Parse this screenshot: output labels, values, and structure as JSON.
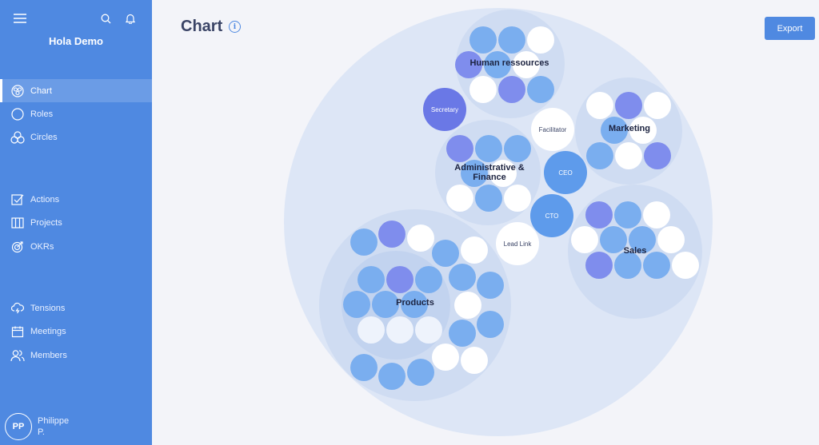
{
  "app": {
    "org_name": "Hola Demo",
    "menu_icon": "hamburger-icon",
    "search_icon": "search-icon",
    "notification_icon": "bell-icon"
  },
  "sidebar": {
    "items": [
      {
        "label": "Chart",
        "icon": "chart-icon",
        "active": true
      },
      {
        "label": "Roles",
        "icon": "role-circle-icon"
      },
      {
        "label": "Circles",
        "icon": "circles-icon"
      },
      {
        "label": "Actions",
        "icon": "checkbox-icon"
      },
      {
        "label": "Projects",
        "icon": "kanban-icon"
      },
      {
        "label": "OKRs",
        "icon": "target-icon"
      },
      {
        "label": "Tensions",
        "icon": "cloud-lightning-icon"
      },
      {
        "label": "Meetings",
        "icon": "calendar-icon"
      },
      {
        "label": "Members",
        "icon": "members-icon"
      }
    ],
    "user": {
      "initials": "PP",
      "name": "Philippe P."
    }
  },
  "main": {
    "title": "Chart",
    "info_icon": "info-icon",
    "export_label": "Export"
  },
  "chart": {
    "labels": {
      "human_resources": "Human ressources",
      "secretary": "Secretary",
      "facilitator": "Facilitator",
      "marketing": "Marketing",
      "admin_line1": "Administrative &",
      "admin_line2": "Finance",
      "ceo": "CEO",
      "cto": "CTO",
      "lead_link": "Lead Link",
      "sales": "Sales",
      "products": "Products"
    },
    "colors": {
      "blue": "#7aaeef",
      "purple": "#7f8ded",
      "white": "#ffffff",
      "secretary": "#6a78e6"
    }
  }
}
